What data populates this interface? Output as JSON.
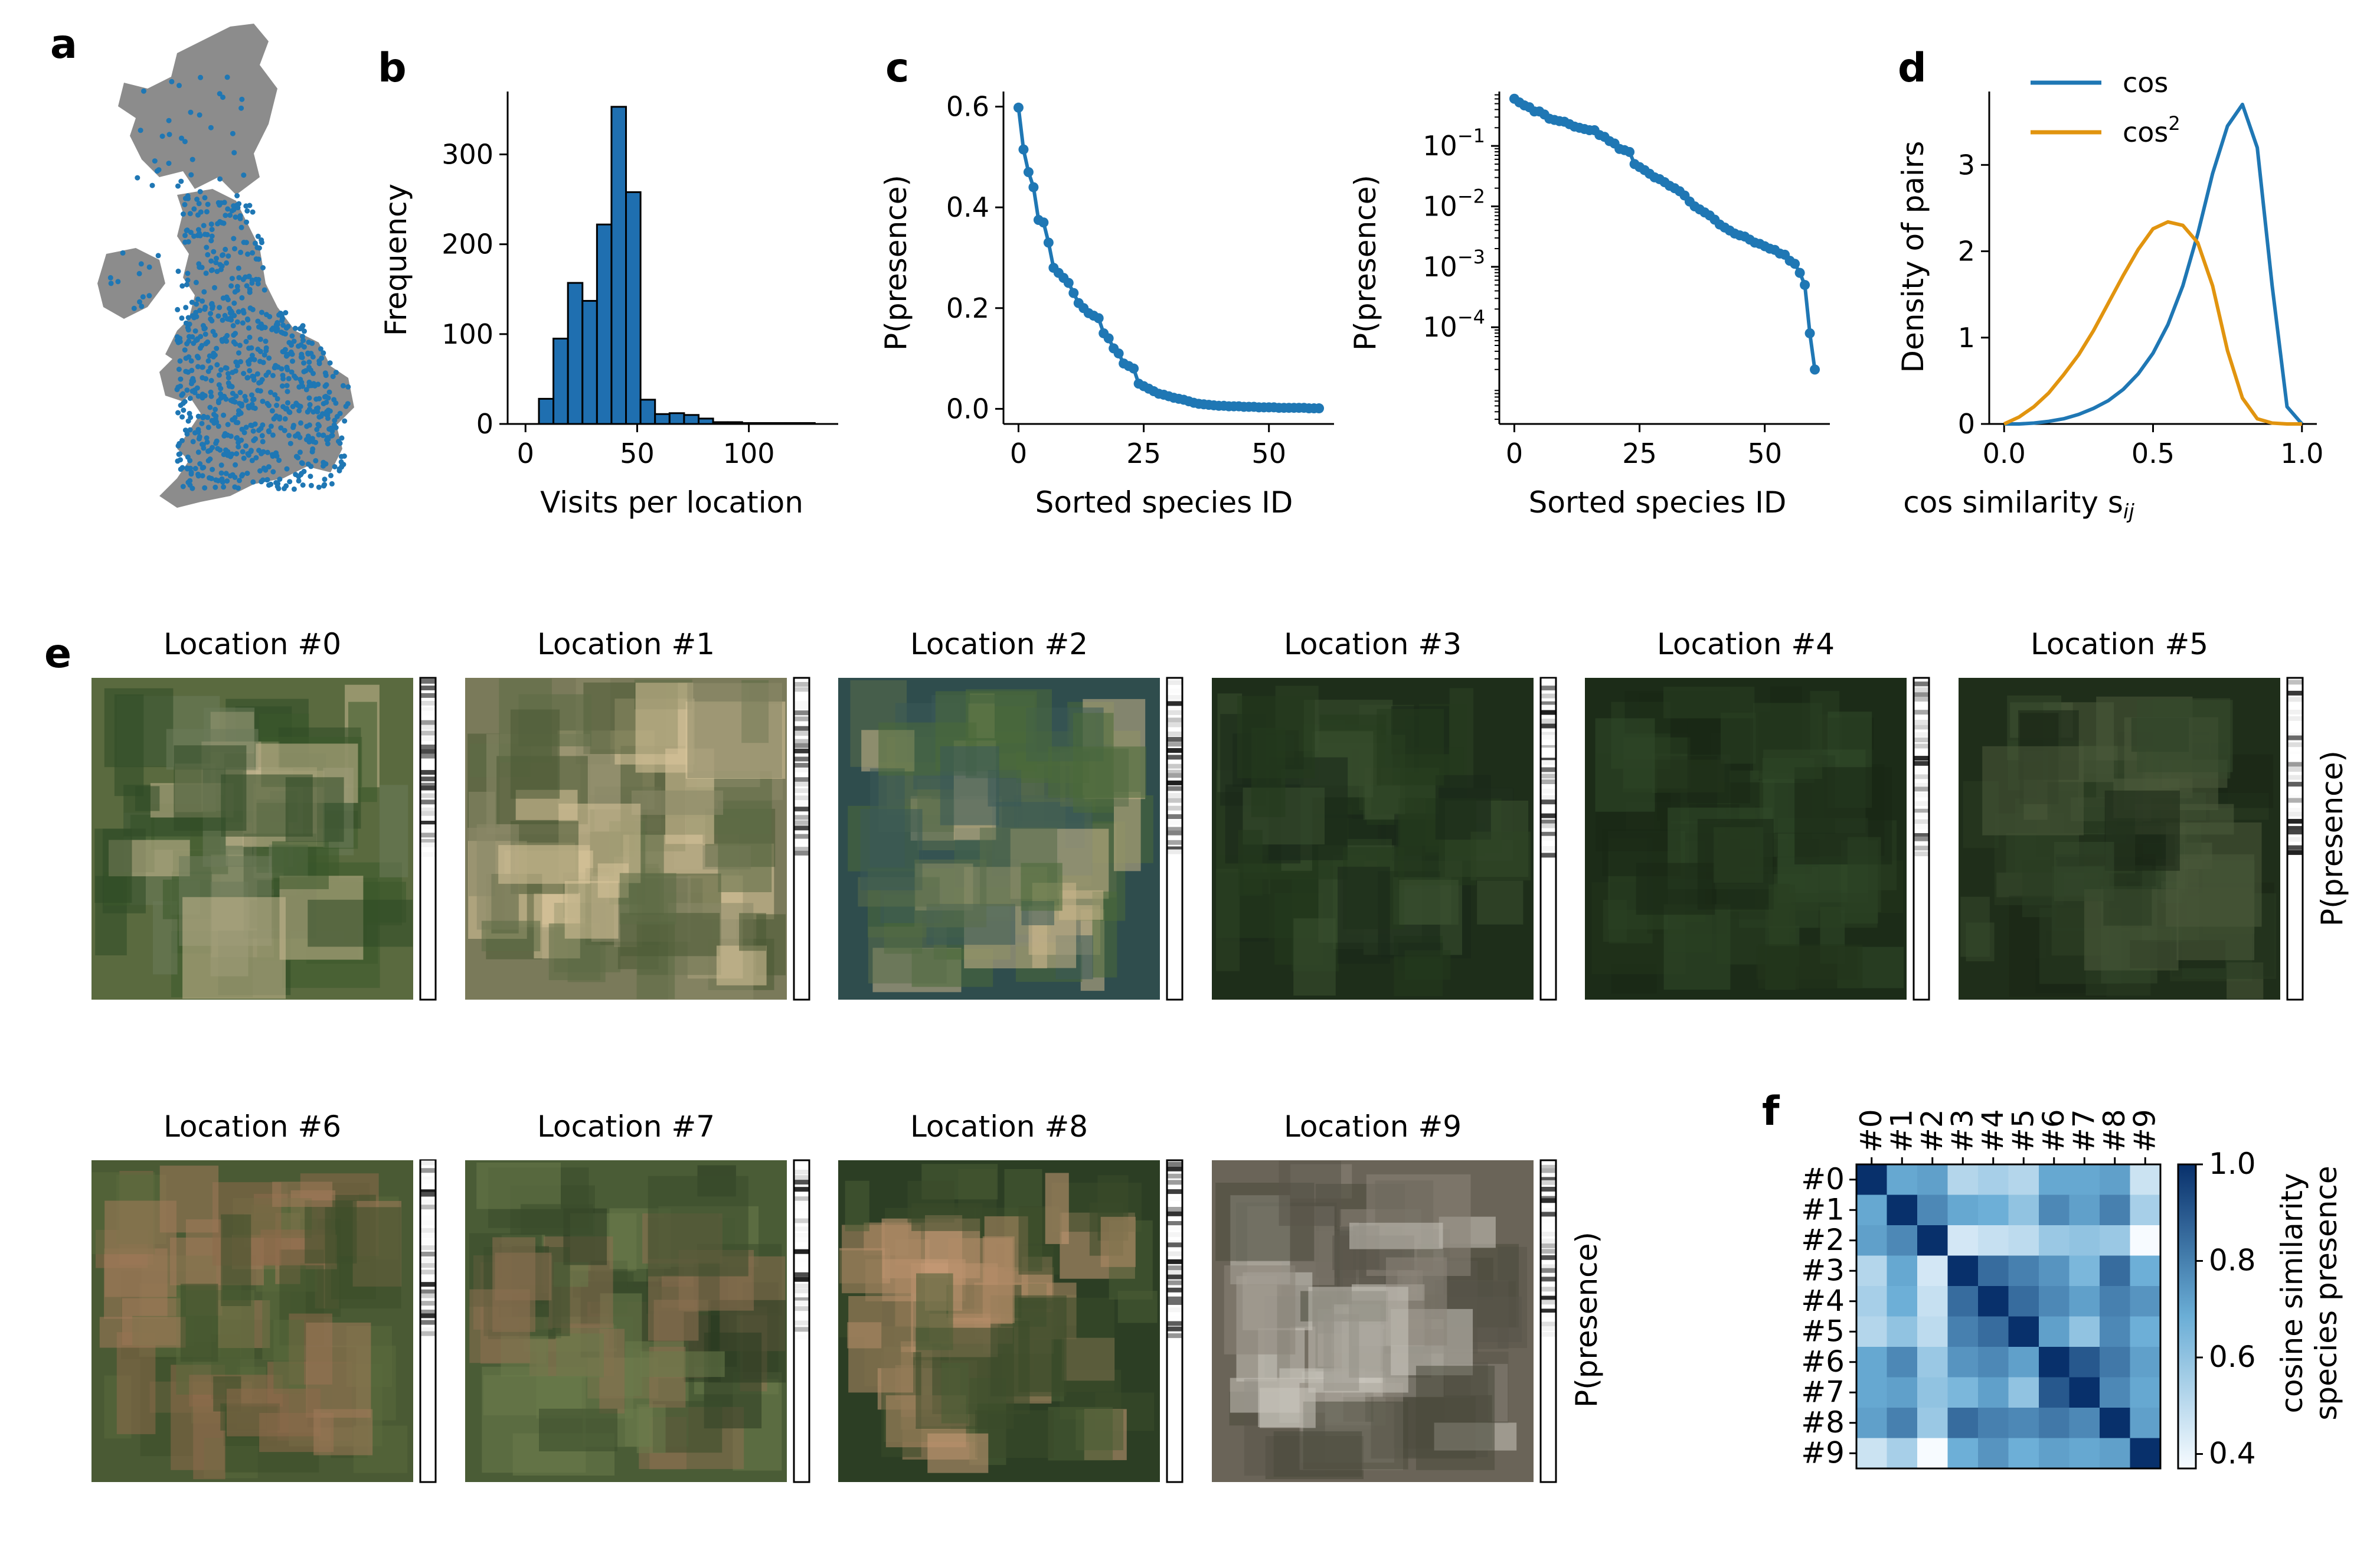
{
  "panel_labels": {
    "a": "a",
    "b": "b",
    "c": "c",
    "d": "d",
    "e": "e",
    "f": "f"
  },
  "colors": {
    "blue": "#1f77b4",
    "map_blue": "#1f77b4",
    "orange": "#e1940f",
    "bar_fill": "#1f6fb0",
    "map_land": "#8c8c8c"
  },
  "chart_data": [
    {
      "panel": "b",
      "type": "bar",
      "xlabel": "Visits per location",
      "ylabel": "Frequency",
      "xlim": [
        -8,
        140
      ],
      "ylim": [
        0,
        370
      ],
      "xticks": [
        0,
        50,
        100
      ],
      "yticks": [
        0,
        100,
        200,
        300
      ],
      "bin_width": 6.5,
      "bins": [
        6,
        12.5,
        19,
        25.5,
        32,
        38.5,
        45,
        51.5,
        58,
        64.5,
        71,
        77.5,
        84,
        90.5,
        97,
        103.5,
        110,
        116.5,
        123
      ],
      "values": [
        28,
        95,
        157,
        137,
        222,
        353,
        258,
        27,
        11,
        12,
        10,
        6,
        2,
        2,
        1,
        1,
        1,
        1,
        1
      ]
    },
    {
      "panel": "c-left",
      "type": "line",
      "xlabel": "Sorted species ID",
      "ylabel": "P(presence)",
      "xlim": [
        -3,
        63
      ],
      "ylim": [
        -0.03,
        0.63
      ],
      "xticks": [
        0,
        25,
        50
      ],
      "yticks": [
        0.0,
        0.2,
        0.4,
        0.6
      ],
      "ytick_labels": [
        "0.0",
        "0.2",
        "0.4",
        "0.6"
      ],
      "values": [
        0.598,
        0.515,
        0.47,
        0.44,
        0.375,
        0.37,
        0.33,
        0.28,
        0.27,
        0.26,
        0.25,
        0.23,
        0.21,
        0.2,
        0.19,
        0.185,
        0.18,
        0.15,
        0.14,
        0.12,
        0.11,
        0.09,
        0.085,
        0.08,
        0.05,
        0.045,
        0.04,
        0.035,
        0.03,
        0.028,
        0.025,
        0.022,
        0.02,
        0.018,
        0.015,
        0.012,
        0.01,
        0.009,
        0.008,
        0.007,
        0.006,
        0.006,
        0.005,
        0.005,
        0.005,
        0.004,
        0.004,
        0.004,
        0.003,
        0.003,
        0.003,
        0.003,
        0.002,
        0.002,
        0.002,
        0.002,
        0.002,
        0.002,
        0.001,
        0.001,
        0.001
      ]
    },
    {
      "panel": "c-right",
      "type": "line",
      "xlabel": "Sorted species ID",
      "ylabel": "P(presence)",
      "scale": "log",
      "xlim": [
        -3,
        63
      ],
      "ylim_log10": [
        -5.6,
        -0.1
      ],
      "xticks": [
        0,
        25,
        50
      ],
      "yticks_log10": [
        -1,
        -2,
        -3,
        -4
      ],
      "ytick_labels": [
        "10",
        "10",
        "10",
        "10"
      ],
      "ytick_exponents": [
        "−1",
        "−2",
        "−3",
        "−4"
      ],
      "values_log10": [
        -0.22,
        -0.28,
        -0.33,
        -0.36,
        -0.43,
        -0.43,
        -0.48,
        -0.55,
        -0.57,
        -0.59,
        -0.6,
        -0.64,
        -0.68,
        -0.7,
        -0.72,
        -0.74,
        -0.74,
        -0.82,
        -0.85,
        -0.92,
        -0.96,
        -1.05,
        -1.07,
        -1.1,
        -1.3,
        -1.35,
        -1.4,
        -1.46,
        -1.52,
        -1.55,
        -1.6,
        -1.66,
        -1.7,
        -1.75,
        -1.82,
        -1.92,
        -2.0,
        -2.05,
        -2.1,
        -2.15,
        -2.22,
        -2.3,
        -2.35,
        -2.4,
        -2.45,
        -2.48,
        -2.5,
        -2.55,
        -2.6,
        -2.62,
        -2.66,
        -2.7,
        -2.72,
        -2.78,
        -2.8,
        -2.9,
        -2.95,
        -3.1,
        -3.3,
        -4.1,
        -4.7
      ]
    },
    {
      "panel": "d",
      "type": "line",
      "xlabel": "cos similarity s",
      "xlabel_sub": "ij",
      "ylabel": "Density of pairs",
      "xlim": [
        -0.05,
        1.05
      ],
      "ylim": [
        0,
        3.85
      ],
      "xticks": [
        0.0,
        0.5,
        1.0
      ],
      "xtick_labels": [
        "0.0",
        "0.5",
        "1.0"
      ],
      "yticks": [
        0,
        1,
        2,
        3
      ],
      "legend_position": "top-left",
      "x": [
        0.0,
        0.05,
        0.1,
        0.15,
        0.2,
        0.25,
        0.3,
        0.35,
        0.4,
        0.45,
        0.5,
        0.55,
        0.6,
        0.65,
        0.7,
        0.75,
        0.8,
        0.85,
        0.9,
        0.95,
        1.0
      ],
      "series": [
        {
          "name": "cos",
          "values": [
            0,
            0,
            0.01,
            0.03,
            0.06,
            0.11,
            0.18,
            0.27,
            0.4,
            0.58,
            0.82,
            1.15,
            1.6,
            2.2,
            2.9,
            3.45,
            3.7,
            3.2,
            1.6,
            0.2,
            0
          ]
        },
        {
          "name": "cos",
          "name_sup": "2",
          "values": [
            0,
            0.08,
            0.2,
            0.36,
            0.57,
            0.8,
            1.08,
            1.4,
            1.72,
            2.02,
            2.26,
            2.34,
            2.3,
            2.1,
            1.6,
            0.85,
            0.3,
            0.06,
            0.01,
            0,
            0
          ]
        }
      ]
    },
    {
      "panel": "f",
      "type": "heatmap",
      "labels": [
        "#0",
        "#1",
        "#2",
        "#3",
        "#4",
        "#5",
        "#6",
        "#7",
        "#8",
        "#9"
      ],
      "colorbar_label": "cosine similarity",
      "colorbar_label2": "species presence",
      "vmin": 0.37,
      "vmax": 1.0,
      "colorbar_ticks": [
        0.4,
        0.6,
        0.8,
        1.0
      ],
      "colorbar_tick_labels": [
        "0.4",
        "0.6",
        "0.8",
        "1.0"
      ],
      "matrix": [
        [
          1.0,
          0.7,
          0.72,
          0.52,
          0.55,
          0.52,
          0.7,
          0.7,
          0.72,
          0.47
        ],
        [
          0.7,
          1.0,
          0.78,
          0.7,
          0.68,
          0.6,
          0.78,
          0.72,
          0.8,
          0.55
        ],
        [
          0.72,
          0.78,
          1.0,
          0.45,
          0.48,
          0.5,
          0.58,
          0.6,
          0.58,
          0.37
        ],
        [
          0.52,
          0.7,
          0.45,
          1.0,
          0.85,
          0.8,
          0.75,
          0.65,
          0.85,
          0.68
        ],
        [
          0.55,
          0.68,
          0.48,
          0.85,
          1.0,
          0.85,
          0.78,
          0.72,
          0.8,
          0.75
        ],
        [
          0.52,
          0.6,
          0.5,
          0.8,
          0.85,
          1.0,
          0.72,
          0.6,
          0.78,
          0.68
        ],
        [
          0.7,
          0.78,
          0.58,
          0.75,
          0.78,
          0.72,
          1.0,
          0.9,
          0.82,
          0.72
        ],
        [
          0.7,
          0.72,
          0.6,
          0.65,
          0.72,
          0.6,
          0.9,
          1.0,
          0.78,
          0.7
        ],
        [
          0.72,
          0.8,
          0.58,
          0.85,
          0.8,
          0.78,
          0.82,
          0.78,
          1.0,
          0.72
        ],
        [
          0.47,
          0.55,
          0.37,
          0.68,
          0.75,
          0.68,
          0.72,
          0.7,
          0.72,
          1.0
        ]
      ]
    }
  ],
  "locations": {
    "ylabel": "P(presence)",
    "items": [
      {
        "title": "Location #0",
        "colors": [
          "#5a6a3f",
          "#3d5a2c",
          "#2f4a26",
          "#c8b892",
          "#6c7a5a"
        ]
      },
      {
        "title": "Location #1",
        "colors": [
          "#7a7a5a",
          "#d9c49a",
          "#4a5a34",
          "#5c6b45",
          "#8a8868"
        ]
      },
      {
        "title": "Location #2",
        "colors": [
          "#2f4d4d",
          "#3a5a58",
          "#5a6e4a",
          "#c9b58a",
          "#4b6a3a"
        ]
      },
      {
        "title": "Location #3",
        "colors": [
          "#1e2e1a",
          "#243a1e",
          "#2d4424",
          "#3a5030",
          "#1a281a"
        ]
      },
      {
        "title": "Location #4",
        "colors": [
          "#1c2c18",
          "#22351c",
          "#2a3f22",
          "#1a2816",
          "#324a2a"
        ]
      },
      {
        "title": "Location #5",
        "colors": [
          "#1f2e1a",
          "#2a3d22",
          "#34482c",
          "#1a2716",
          "#4a5a3a"
        ]
      },
      {
        "title": "Location #6",
        "colors": [
          "#4a5a34",
          "#8c6a4a",
          "#5a6a3c",
          "#3c4e2a",
          "#a07a5a"
        ]
      },
      {
        "title": "Location #7",
        "colors": [
          "#4a5c36",
          "#8a7050",
          "#3a4c2c",
          "#6a7a4a",
          "#2c3c22"
        ]
      },
      {
        "title": "Location #8",
        "colors": [
          "#2c3e24",
          "#b08a66",
          "#4a5c34",
          "#c89a76",
          "#3a4a2a"
        ]
      },
      {
        "title": "Location #9",
        "colors": [
          "#6a6458",
          "#8a8478",
          "#5a564a",
          "#c8c4bc",
          "#4a4a3c"
        ]
      }
    ]
  }
}
